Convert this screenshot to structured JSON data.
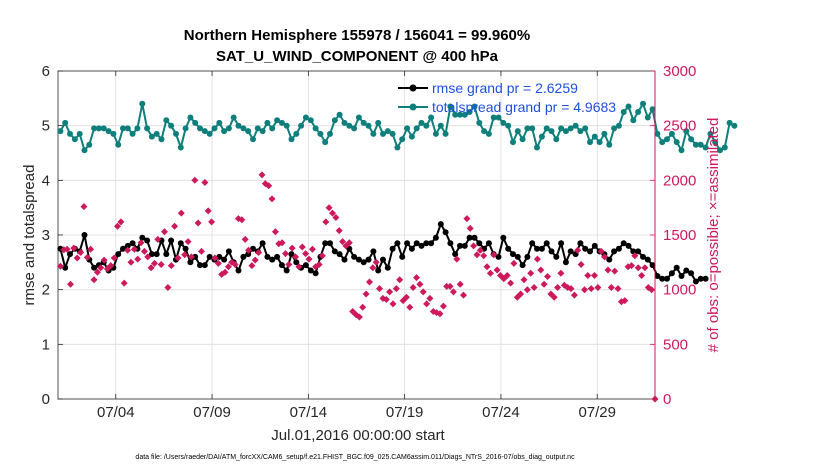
{
  "chart_data": {
    "type": "line",
    "title": "Northern Hemisphere 155978 / 156041 = 99.960%",
    "subtitle": "SAT_U_WIND_COMPONENT @ 400 hPa",
    "xlabel": "Jul.01,2016 00:00:00 start",
    "ylabel": "rmse and totalspread",
    "ylabel_right": "# of obs: o=possible; ×=assimilated",
    "footer": "data file: /Users/raeder/DAI/ATM_forcXX/CAM6_setup/f.e21.FHIST_BGC.f09_025.CAM6assim.011/Diags_NTrS_2016-07/obs_diag_output.nc",
    "xlim": [
      1.0,
      32.0
    ],
    "ylim": [
      0,
      6
    ],
    "ylim_right": [
      0,
      3000
    ],
    "x_ticks": [
      4,
      9,
      14,
      19,
      24,
      29
    ],
    "x_tick_labels": [
      "07/04",
      "07/09",
      "07/14",
      "07/19",
      "07/24",
      "07/29"
    ],
    "y_ticks": [
      0,
      1,
      2,
      3,
      4,
      5,
      6
    ],
    "y_tick_labels": [
      "0",
      "1",
      "2",
      "3",
      "4",
      "5",
      "6"
    ],
    "y_ticks_right": [
      0,
      500,
      1000,
      1500,
      2000,
      2500,
      3000
    ],
    "y_tick_labels_right": [
      "0",
      "500",
      "1000",
      "1500",
      "2000",
      "2500",
      "3000"
    ],
    "grid": true,
    "legend_position": "top-right",
    "legend": [
      "rmse grand pr = 2.6259",
      "totalspread grand pr = 4.9683"
    ],
    "x_step_days": 0.25,
    "x_start": 1.125,
    "series": [
      {
        "name": "rmse",
        "color": "#000000",
        "axis": "left",
        "marker": "circle",
        "values": [
          2.75,
          2.4,
          2.65,
          2.75,
          2.7,
          3.0,
          2.55,
          2.4,
          2.45,
          2.5,
          2.35,
          2.4,
          2.65,
          2.75,
          2.8,
          2.85,
          2.75,
          2.95,
          2.9,
          2.65,
          2.65,
          2.9,
          2.65,
          2.9,
          2.55,
          2.85,
          2.75,
          2.5,
          2.6,
          2.45,
          2.45,
          2.6,
          2.55,
          2.6,
          2.55,
          2.7,
          2.5,
          2.35,
          2.6,
          2.65,
          2.75,
          2.7,
          2.85,
          2.6,
          2.55,
          2.6,
          2.45,
          2.35,
          2.65,
          2.5,
          2.4,
          2.45,
          2.35,
          2.3,
          2.6,
          2.85,
          2.85,
          2.7,
          2.65,
          2.55,
          2.75,
          2.6,
          2.55,
          2.5,
          2.55,
          2.7,
          2.35,
          2.55,
          2.4,
          2.75,
          2.85,
          2.6,
          2.85,
          2.75,
          2.85,
          2.8,
          2.85,
          2.85,
          2.95,
          3.2,
          3.05,
          2.85,
          2.65,
          2.8,
          2.8,
          2.95,
          2.95,
          2.85,
          2.75,
          2.85,
          2.65,
          2.6,
          2.95,
          2.75,
          2.65,
          2.6,
          2.45,
          2.6,
          2.85,
          2.75,
          2.75,
          2.85,
          2.7,
          2.6,
          2.85,
          2.5,
          2.7,
          2.65,
          2.85,
          2.75,
          2.7,
          2.8,
          2.7,
          2.65,
          2.55,
          2.7,
          2.75,
          2.85,
          2.8,
          2.7,
          2.7,
          2.6,
          2.55,
          2.45,
          2.25,
          2.2,
          2.2,
          2.3,
          2.4,
          2.25,
          2.35,
          2.3,
          2.15,
          2.2,
          2.2
        ]
      },
      {
        "name": "totalspread",
        "color": "#0e7f7b",
        "axis": "left",
        "marker": "circle",
        "values": [
          4.9,
          5.05,
          4.85,
          4.75,
          4.85,
          4.55,
          4.65,
          4.95,
          4.95,
          4.95,
          4.9,
          4.85,
          4.65,
          4.95,
          4.95,
          4.85,
          4.95,
          5.4,
          4.95,
          4.8,
          4.85,
          4.75,
          5.1,
          5.0,
          4.85,
          4.6,
          4.95,
          5.15,
          5.05,
          4.95,
          4.9,
          4.85,
          4.95,
          5.05,
          4.9,
          4.95,
          5.15,
          5.0,
          4.95,
          4.9,
          4.75,
          4.95,
          4.9,
          5.05,
          4.95,
          5.1,
          5.05,
          5.0,
          4.75,
          4.85,
          5.0,
          5.15,
          5.1,
          4.95,
          4.85,
          4.7,
          4.85,
          5.1,
          5.2,
          5.05,
          5.0,
          4.95,
          5.15,
          5.05,
          5.0,
          4.85,
          5.05,
          4.85,
          4.9,
          4.85,
          4.6,
          4.75,
          4.95,
          4.8,
          4.95,
          5.05,
          5.0,
          5.15,
          4.85,
          5.0,
          4.85,
          5.35,
          5.2,
          5.2,
          5.2,
          5.25,
          5.35,
          5.05,
          4.9,
          4.85,
          5.15,
          5.15,
          5.05,
          5.0,
          4.7,
          4.9,
          4.75,
          4.95,
          4.95,
          4.6,
          4.8,
          4.95,
          4.9,
          4.75,
          4.95,
          4.9,
          4.95,
          5.0,
          4.9,
          4.95,
          4.7,
          4.8,
          4.7,
          4.85,
          4.65,
          4.95,
          5.0,
          5.25,
          5.35,
          5.1,
          5.25,
          5.4,
          5.15,
          5.3,
          4.85,
          4.7,
          4.75,
          4.85,
          4.7,
          4.55,
          4.9,
          4.75,
          4.65,
          4.65,
          4.6,
          4.85,
          4.7,
          4.55,
          4.6,
          5.05,
          5.0
        ]
      },
      {
        "name": "obs possible/assimilated",
        "color": "#cc1a5c",
        "axis": "right",
        "marker": "x",
        "values": [
          1215,
          1365,
          1370,
          1050,
          1380,
          1290,
          1340,
          1760,
          1295,
          1370,
          1090,
          1160,
          1200,
          1270,
          1190,
          1220,
          1290,
          1580,
          1620,
          1060,
          1360,
          1250,
          1370,
          1280,
          1430,
          1350,
          1300,
          1200,
          1240,
          1460,
          1230,
          1530,
          1020,
          1220,
          1580,
          1290,
          1700,
          1320,
          1440,
          1300,
          2000,
          1610,
          1350,
          1980,
          1720,
          1620,
          1290,
          1240,
          1140,
          1160,
          1210,
          1250,
          1230,
          1650,
          1640,
          1460,
          1360,
          1220,
          1270,
          1340,
          2050,
          1970,
          1950,
          1830,
          1530,
          1420,
          1430,
          1330,
          1230,
          1380,
          1300,
          1210,
          1390,
          1330,
          1280,
          1370,
          1210,
          1230,
          1310,
          1620,
          1750,
          1700,
          1660,
          1540,
          1440,
          1400,
          1430,
          800,
          770,
          750,
          840,
          960,
          1070,
          1200,
          1250,
          1010,
          920,
          910,
          980,
          870,
          1010,
          1090,
          900,
          930,
          840,
          1020,
          1110,
          1050,
          980,
          870,
          920,
          800,
          790,
          780,
          850,
          1030,
          1030,
          980,
          1280,
          1050,
          950,
          1650,
          1560,
          1400,
          1320,
          1360,
          1310,
          1210,
          1150,
          1320,
          1180,
          1130,
          1100,
          1130,
          1060,
          1240,
          930,
          960,
          1090,
          1000,
          1150,
          1020,
          1280,
          1180,
          1050,
          1120,
          960,
          930,
          1020,
          1150,
          1040,
          1020,
          1010,
          950,
          1360,
          1230,
          1000,
          1130,
          1010,
          1130,
          1020,
          1350,
          1300,
          1180,
          1020,
          1170,
          1010,
          890,
          900,
          1210,
          1220,
          1310,
          1200,
          1130,
          1200,
          1020,
          1000,
          0
        ]
      }
    ]
  }
}
